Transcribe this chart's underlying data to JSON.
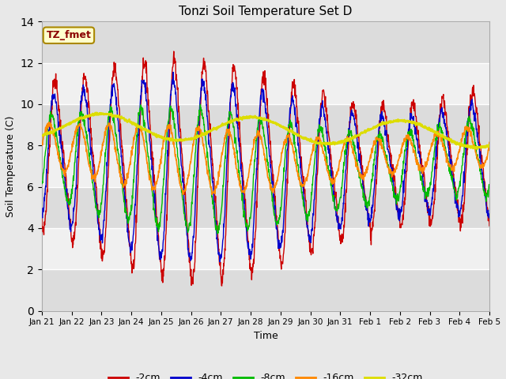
{
  "title": "Tonzi Soil Temperature Set D",
  "xlabel": "Time",
  "ylabel": "Soil Temperature (C)",
  "ylim": [
    0,
    14
  ],
  "yticks": [
    0,
    2,
    4,
    6,
    8,
    10,
    12,
    14
  ],
  "annotation_text": "TZ_fmet",
  "annotation_color": "#8B0000",
  "annotation_bg": "#FFFFCC",
  "fig_bg": "#E8E8E8",
  "plot_bg_light": "#F5F5F5",
  "plot_bg_dark": "#DCDCDC",
  "colors": {
    "-2cm": "#CC0000",
    "-4cm": "#0000CC",
    "-8cm": "#00BB00",
    "-16cm": "#FF8800",
    "-32cm": "#DDDD00"
  },
  "xtick_labels": [
    "Jan 21",
    "Jan 22",
    "Jan 23",
    "Jan 24",
    "Jan 25",
    "Jan 26",
    "Jan 27",
    "Jan 28",
    "Jan 29",
    "Jan 30",
    "Jan 31",
    "Feb 1",
    "Feb 2",
    "Feb 3",
    "Feb 4",
    "Feb 5"
  ],
  "figsize": [
    6.4,
    4.8
  ],
  "dpi": 100
}
